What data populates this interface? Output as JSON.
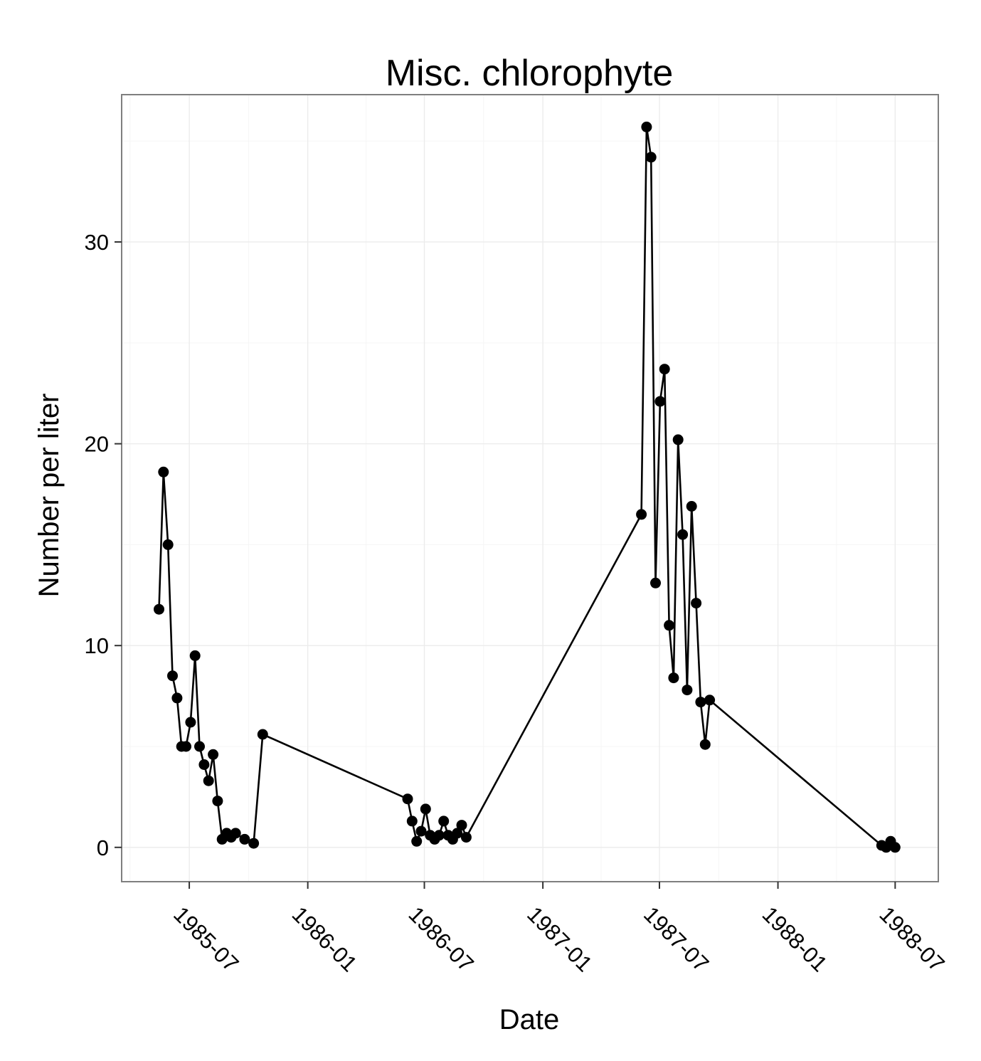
{
  "chart_data": {
    "type": "line",
    "title": "Misc. chlorophyte",
    "xlabel": "Date",
    "ylabel": "Number per liter",
    "x_ticks": [
      "1985-07",
      "1986-01",
      "1986-07",
      "1987-01",
      "1987-07",
      "1988-01",
      "1988-07"
    ],
    "y_ticks": [
      0,
      10,
      20,
      30
    ],
    "ylim": [
      -1.7,
      37.3
    ],
    "xlim": [
      "1985-03-18",
      "1988-09-06"
    ],
    "grid": true,
    "x": [
      "1985-05-15",
      "1985-05-22",
      "1985-05-29",
      "1985-06-05",
      "1985-06-12",
      "1985-06-19",
      "1985-06-26",
      "1985-07-03",
      "1985-07-10",
      "1985-07-17",
      "1985-07-24",
      "1985-07-31",
      "1985-08-07",
      "1985-08-14",
      "1985-08-21",
      "1985-08-28",
      "1985-09-04",
      "1985-09-11",
      "1985-09-25",
      "1985-10-09",
      "1985-10-23",
      "1986-06-05",
      "1986-06-12",
      "1986-06-19",
      "1986-06-26",
      "1986-07-03",
      "1986-07-10",
      "1986-07-17",
      "1986-07-24",
      "1986-07-31",
      "1986-08-07",
      "1986-08-14",
      "1986-08-21",
      "1986-08-28",
      "1986-09-04",
      "1987-06-03",
      "1987-06-11",
      "1987-06-18",
      "1987-06-25",
      "1987-07-02",
      "1987-07-09",
      "1987-07-16",
      "1987-07-23",
      "1987-07-30",
      "1987-08-06",
      "1987-08-13",
      "1987-08-20",
      "1987-08-27",
      "1987-09-03",
      "1987-09-10",
      "1987-09-17",
      "1988-06-10",
      "1988-06-17",
      "1988-06-24",
      "1988-07-01"
    ],
    "series": [
      {
        "values": [
          11.8,
          18.6,
          15.0,
          8.5,
          7.4,
          5.0,
          5.0,
          6.2,
          9.5,
          5.0,
          4.1,
          3.3,
          4.6,
          2.3,
          0.4,
          0.7,
          0.5,
          0.7,
          0.4,
          0.2,
          5.6,
          2.4,
          1.3,
          0.3,
          0.8,
          1.9,
          0.6,
          0.4,
          0.6,
          1.3,
          0.6,
          0.4,
          0.7,
          1.1,
          0.5,
          16.5,
          35.7,
          34.2,
          13.1,
          22.1,
          23.7,
          11.0,
          8.4,
          20.2,
          15.5,
          7.8,
          16.9,
          12.1,
          7.2,
          5.1,
          7.3,
          0.1,
          0.0,
          0.3,
          0.0
        ]
      }
    ]
  }
}
